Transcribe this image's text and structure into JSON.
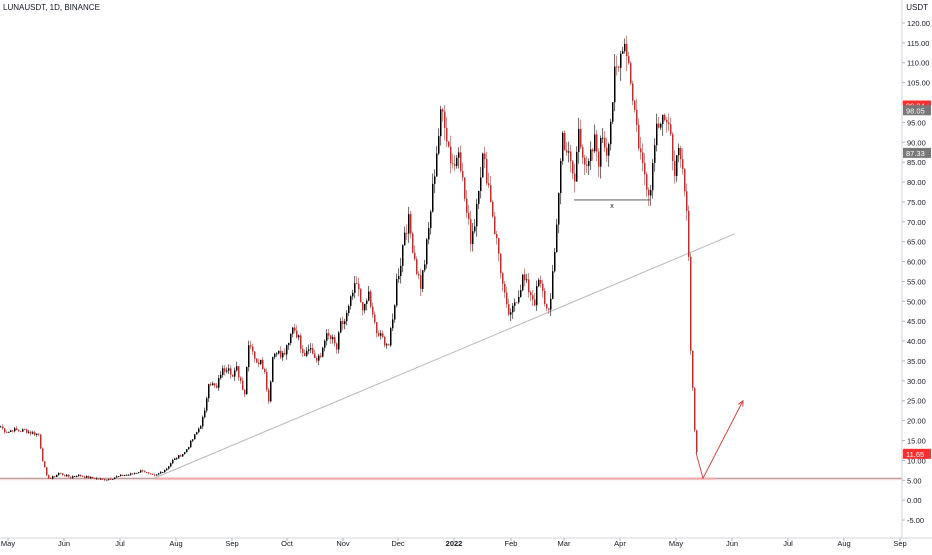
{
  "header": {
    "symbol": "LUNAUSDT, 1D, BINANCE",
    "currency": "USDT"
  },
  "colors": {
    "up": "#000000",
    "down": "#e02020",
    "trendline": "#b8b8b8",
    "support": "#f2a7a7",
    "projection": "#e03030",
    "price_tag": "#ff2d2d",
    "gray_tag": "#777777"
  },
  "chart_data": {
    "type": "candlestick",
    "ylim": [
      -6.5,
      121.5
    ],
    "y_ticks": [
      "-5.00",
      "0.00",
      "5.00",
      "10.00",
      "15.00",
      "20.00",
      "25.00",
      "30.00",
      "35.00",
      "40.00",
      "45.00",
      "50.00",
      "55.00",
      "60.00",
      "65.00",
      "70.00",
      "75.00",
      "80.00",
      "85.00",
      "90.00",
      "95.00",
      "100.00",
      "105.00",
      "110.00",
      "115.00",
      "120.00"
    ],
    "x_ticks": [
      "May",
      "Jun",
      "Jul",
      "Aug",
      "Sep",
      "Oct",
      "Nov",
      "Dec",
      "2022",
      "Feb",
      "Mar",
      "Apr",
      "May",
      "Jun",
      "Jul",
      "Aug",
      "Sep"
    ],
    "price_tags": [
      {
        "label": "99.24",
        "value": 99.24,
        "style": "red"
      },
      {
        "label": "98.05",
        "value": 98.05,
        "style": "gray"
      },
      {
        "label": "87.33",
        "value": 87.33,
        "style": "gray"
      },
      {
        "label": "11.65",
        "value": 11.65,
        "style": "red"
      }
    ],
    "annotations": {
      "double_bottom_label": "x",
      "double_bottom_level": 75.5,
      "support_level": 5.4
    },
    "close_path": [
      [
        0,
        18.5
      ],
      [
        4,
        17.5
      ],
      [
        8,
        17.2
      ],
      [
        12,
        17.8
      ],
      [
        18,
        17.4
      ],
      [
        24,
        17.6
      ],
      [
        30,
        17.0
      ],
      [
        38,
        16.5
      ],
      [
        42,
        10.0
      ],
      [
        46,
        6.0
      ],
      [
        50,
        5.5
      ],
      [
        54,
        6.0
      ],
      [
        58,
        6.8
      ],
      [
        64,
        6.2
      ],
      [
        70,
        5.8
      ],
      [
        76,
        6.3
      ],
      [
        82,
        6.0
      ],
      [
        88,
        5.7
      ],
      [
        94,
        5.5
      ],
      [
        100,
        5.2
      ],
      [
        106,
        5.3
      ],
      [
        112,
        5.6
      ],
      [
        118,
        6.0
      ],
      [
        124,
        6.3
      ],
      [
        130,
        6.5
      ],
      [
        136,
        7.0
      ],
      [
        142,
        7.5
      ],
      [
        148,
        6.5
      ],
      [
        154,
        6.0
      ],
      [
        160,
        7.0
      ],
      [
        166,
        8.0
      ],
      [
        172,
        10.0
      ],
      [
        178,
        11.0
      ],
      [
        184,
        12.0
      ],
      [
        190,
        14.5
      ],
      [
        196,
        17.0
      ],
      [
        200,
        19.0
      ],
      [
        204,
        22.0
      ],
      [
        208,
        30.0
      ],
      [
        212,
        29.0
      ],
      [
        216,
        28.0
      ],
      [
        220,
        32.0
      ],
      [
        224,
        33.0
      ],
      [
        228,
        34.0
      ],
      [
        232,
        31.0
      ],
      [
        236,
        33.0
      ],
      [
        240,
        30.0
      ],
      [
        244,
        27.0
      ],
      [
        248,
        40.0
      ],
      [
        252,
        38.0
      ],
      [
        256,
        34.0
      ],
      [
        260,
        36.0
      ],
      [
        264,
        32.0
      ],
      [
        268,
        25.0
      ],
      [
        272,
        36.0
      ],
      [
        276,
        38.0
      ],
      [
        280,
        36.0
      ],
      [
        284,
        37.0
      ],
      [
        288,
        39.0
      ],
      [
        292,
        44.0
      ],
      [
        296,
        42.0
      ],
      [
        300,
        39.0
      ],
      [
        304,
        37.0
      ],
      [
        308,
        39.0
      ],
      [
        312,
        37.0
      ],
      [
        316,
        35.0
      ],
      [
        320,
        36.0
      ],
      [
        324,
        41.0
      ],
      [
        328,
        41.0
      ],
      [
        332,
        40.0
      ],
      [
        336,
        38.0
      ],
      [
        340,
        44.0
      ],
      [
        344,
        45.0
      ],
      [
        348,
        48.0
      ],
      [
        352,
        52.0
      ],
      [
        356,
        54.0
      ],
      [
        360,
        50.0
      ],
      [
        364,
        48.0
      ],
      [
        368,
        52.0
      ],
      [
        372,
        46.0
      ],
      [
        376,
        42.0
      ],
      [
        380,
        41.0
      ],
      [
        384,
        40.0
      ],
      [
        388,
        39.0
      ],
      [
        392,
        45.0
      ],
      [
        396,
        55.0
      ],
      [
        400,
        60.0
      ],
      [
        404,
        68.0
      ],
      [
        408,
        70.0
      ],
      [
        412,
        64.0
      ],
      [
        416,
        58.0
      ],
      [
        420,
        54.0
      ],
      [
        424,
        60.0
      ],
      [
        428,
        68.0
      ],
      [
        432,
        78.0
      ],
      [
        436,
        88.0
      ],
      [
        440,
        96.0
      ],
      [
        443,
        98.0
      ],
      [
        446,
        92.0
      ],
      [
        450,
        86.0
      ],
      [
        454,
        84.0
      ],
      [
        458,
        90.0
      ],
      [
        462,
        80.0
      ],
      [
        466,
        72.0
      ],
      [
        470,
        66.0
      ],
      [
        474,
        70.0
      ],
      [
        478,
        80.0
      ],
      [
        482,
        86.0
      ],
      [
        486,
        82.0
      ],
      [
        490,
        76.0
      ],
      [
        494,
        68.0
      ],
      [
        498,
        62.0
      ],
      [
        502,
        54.0
      ],
      [
        506,
        48.0
      ],
      [
        510,
        46.0
      ],
      [
        514,
        50.0
      ],
      [
        518,
        52.0
      ],
      [
        522,
        56.0
      ],
      [
        526,
        54.0
      ],
      [
        530,
        52.0
      ],
      [
        534,
        50.0
      ],
      [
        538,
        55.0
      ],
      [
        542,
        52.0
      ],
      [
        546,
        48.0
      ],
      [
        550,
        50.0
      ],
      [
        554,
        62.0
      ],
      [
        558,
        78.0
      ],
      [
        562,
        92.0
      ],
      [
        566,
        88.0
      ],
      [
        570,
        84.0
      ],
      [
        574,
        80.0
      ],
      [
        578,
        94.0
      ],
      [
        582,
        88.0
      ],
      [
        586,
        82.0
      ],
      [
        590,
        86.0
      ],
      [
        594,
        90.0
      ],
      [
        598,
        86.0
      ],
      [
        602,
        92.0
      ],
      [
        606,
        88.0
      ],
      [
        610,
        96.0
      ],
      [
        614,
        106.0
      ],
      [
        618,
        108.0
      ],
      [
        622,
        116.0
      ],
      [
        626,
        114.0
      ],
      [
        630,
        106.0
      ],
      [
        634,
        98.0
      ],
      [
        638,
        90.0
      ],
      [
        642,
        84.0
      ],
      [
        646,
        80.0
      ],
      [
        650,
        78.0
      ],
      [
        654,
        92.0
      ],
      [
        658,
        96.0
      ],
      [
        662,
        98.0
      ],
      [
        666,
        94.0
      ],
      [
        670,
        90.0
      ],
      [
        674,
        84.0
      ],
      [
        678,
        86.0
      ],
      [
        682,
        82.0
      ],
      [
        685,
        75.0
      ],
      [
        688,
        63.0
      ],
      [
        690,
        38.0
      ],
      [
        692,
        28.0
      ],
      [
        694,
        18.0
      ],
      [
        696,
        12.0
      ]
    ],
    "trendline": [
      [
        155,
        5.6
      ],
      [
        735,
        67.0
      ]
    ],
    "double_bottom_line": [
      [
        574,
        75.5
      ],
      [
        650,
        75.5
      ]
    ],
    "support_line": [
      [
        155,
        5.4
      ],
      [
        715,
        5.4
      ]
    ],
    "projection": [
      [
        696,
        12.0
      ],
      [
        703,
        5.5
      ],
      [
        743,
        25.0
      ]
    ]
  }
}
